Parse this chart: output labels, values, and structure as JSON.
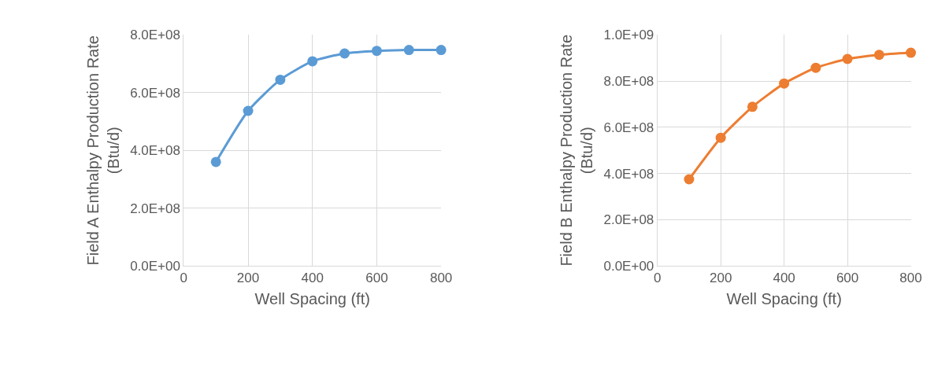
{
  "chart_data": [
    {
      "type": "line",
      "xlabel": "Well Spacing (ft)",
      "ylabel": "Field A Enthalpy Production Rate\n(Btu/d)",
      "x": [
        100,
        200,
        300,
        400,
        500,
        600,
        700,
        800
      ],
      "series": [
        {
          "color": "#5b9bd5",
          "values": [
            360000000,
            537000000,
            645000000,
            709000000,
            736000000,
            745000000,
            748000000,
            748000000
          ]
        }
      ],
      "xlim": [
        0,
        800
      ],
      "xticks": [
        0,
        200,
        400,
        600,
        800
      ],
      "ylim": [
        0,
        800000000
      ],
      "yticks": [
        {
          "value": 0,
          "label": "0.0E+00"
        },
        {
          "value": 200000000,
          "label": "2.0E+08"
        },
        {
          "value": 400000000,
          "label": "4.0E+08"
        },
        {
          "value": 600000000,
          "label": "6.0E+08"
        },
        {
          "value": 800000000,
          "label": "8.0E+08"
        }
      ],
      "grid": true,
      "marker": "circle",
      "line_style": "solid"
    },
    {
      "type": "line",
      "xlabel": "Well Spacing (ft)",
      "ylabel": "Field B Enthalpy Production Rate\n(Btu/d)",
      "x": [
        100,
        200,
        300,
        400,
        500,
        600,
        700,
        800
      ],
      "series": [
        {
          "color": "#ed7d31",
          "values": [
            375000000,
            555000000,
            689000000,
            790000000,
            858000000,
            896000000,
            914000000,
            923000000
          ]
        }
      ],
      "xlim": [
        0,
        800
      ],
      "xticks": [
        0,
        200,
        400,
        600,
        800
      ],
      "ylim": [
        0,
        1000000000
      ],
      "yticks": [
        {
          "value": 0,
          "label": "0.0E+00"
        },
        {
          "value": 200000000,
          "label": "2.0E+08"
        },
        {
          "value": 400000000,
          "label": "4.0E+08"
        },
        {
          "value": 600000000,
          "label": "6.0E+08"
        },
        {
          "value": 800000000,
          "label": "8.0E+08"
        },
        {
          "value": 1000000000,
          "label": "1.0E+09"
        }
      ],
      "grid": true,
      "marker": "circle",
      "line_style": "solid"
    }
  ]
}
